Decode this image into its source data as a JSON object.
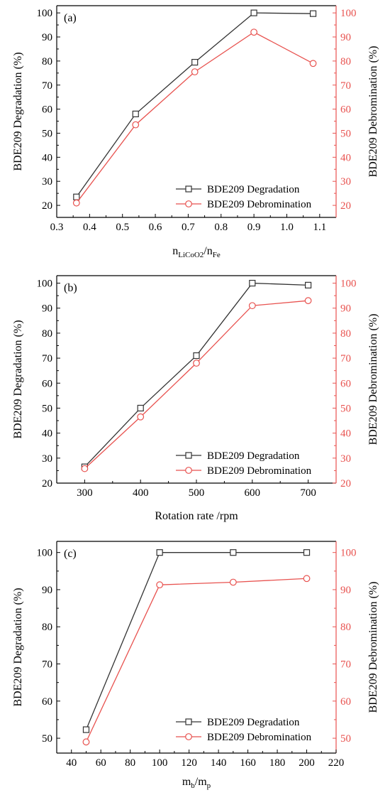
{
  "colors": {
    "degradation": "#333333",
    "debromination": "#e8524f",
    "right_axis": "#e8524f"
  },
  "chart_data": [
    {
      "type": "line",
      "panel_label": "(a)",
      "xlabel_main": "n",
      "xlabel_sub1": "LiCoO2",
      "xlabel_sep": "/n",
      "xlabel_sub2": "Fe",
      "ylabel": "BDE209 Degradation (%)",
      "y2label": "BDE209 Debromination (%)",
      "xlim": [
        0.3,
        1.15
      ],
      "ylim": [
        15,
        103
      ],
      "xticks": [
        0.3,
        0.4,
        0.5,
        0.6,
        0.7,
        0.8,
        0.9,
        1.0,
        1.1
      ],
      "xtick_labels": [
        "0.3",
        "0.4",
        "0.5",
        "0.6",
        "0.7",
        "0.8",
        "0.9",
        "1.0",
        "1.1"
      ],
      "yticks": [
        20,
        30,
        40,
        50,
        60,
        70,
        80,
        90,
        100
      ],
      "ytick_labels": [
        "20",
        "30",
        "40",
        "50",
        "60",
        "70",
        "80",
        "90",
        "100"
      ],
      "x": [
        0.36,
        0.54,
        0.72,
        0.9,
        1.08
      ],
      "series": [
        {
          "name": "BDE209 Degradation",
          "marker": "square",
          "values": [
            23.5,
            58,
            79.5,
            100,
            99.7
          ]
        },
        {
          "name": "BDE209 Debromination",
          "marker": "circle",
          "values": [
            21,
            53.5,
            75.5,
            92,
            79
          ]
        }
      ],
      "legend": "bottom-right"
    },
    {
      "type": "line",
      "panel_label": "(b)",
      "xlabel_main": "Rotation rate /rpm",
      "ylabel": "BDE209 Degradation (%)",
      "y2label": "BDE209 Debromination (%)",
      "xlim": [
        250,
        750
      ],
      "ylim": [
        20,
        103
      ],
      "xticks": [
        300,
        400,
        500,
        600,
        700
      ],
      "xtick_labels": [
        "300",
        "400",
        "500",
        "600",
        "700"
      ],
      "yticks": [
        20,
        30,
        40,
        50,
        60,
        70,
        80,
        90,
        100
      ],
      "ytick_labels": [
        "20",
        "30",
        "40",
        "50",
        "60",
        "70",
        "80",
        "90",
        "100"
      ],
      "x": [
        300,
        400,
        500,
        600,
        700
      ],
      "series": [
        {
          "name": "BDE209 Degradation",
          "marker": "square",
          "values": [
            26.5,
            50,
            71,
            100,
            99.2
          ]
        },
        {
          "name": "BDE209 Debromination",
          "marker": "circle",
          "values": [
            25.8,
            46.5,
            68,
            91,
            93
          ]
        }
      ],
      "legend": "bottom-right"
    },
    {
      "type": "line",
      "panel_label": "(c)",
      "xlabel_main": "m",
      "xlabel_sub1": "b",
      "xlabel_sep": "/m",
      "xlabel_sub2": "p",
      "ylabel": "BDE209 Degradation (%)",
      "y2label": "BDE209 Debromination (%)",
      "xlim": [
        30,
        220
      ],
      "ylim": [
        46,
        103
      ],
      "xticks": [
        40,
        60,
        80,
        100,
        120,
        140,
        160,
        180,
        200,
        220
      ],
      "xtick_labels": [
        "40",
        "60",
        "80",
        "100",
        "120",
        "140",
        "160",
        "180",
        "200",
        "220"
      ],
      "yticks": [
        50,
        60,
        70,
        80,
        90,
        100
      ],
      "ytick_labels": [
        "50",
        "60",
        "70",
        "80",
        "90",
        "100"
      ],
      "x": [
        50,
        100,
        150,
        200
      ],
      "series": [
        {
          "name": "BDE209 Degradation",
          "marker": "square",
          "values": [
            52.3,
            100,
            100,
            100
          ]
        },
        {
          "name": "BDE209 Debromination",
          "marker": "circle",
          "values": [
            49,
            91.3,
            92,
            93
          ]
        }
      ],
      "legend": "bottom-right"
    }
  ]
}
